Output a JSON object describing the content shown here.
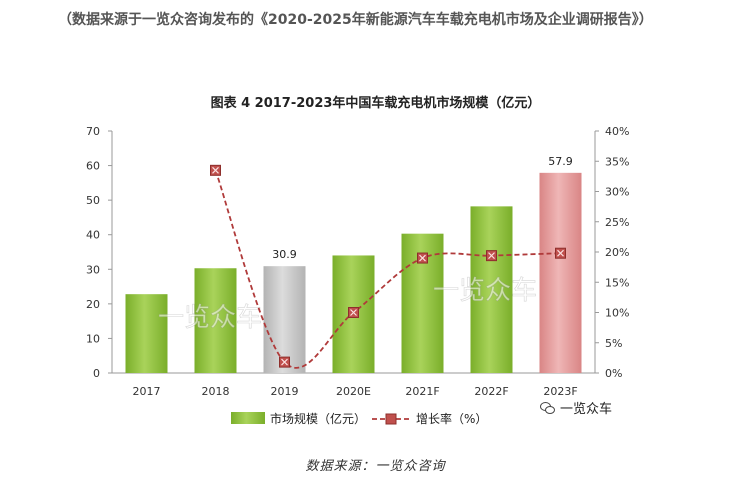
{
  "intro": "（数据来源于一览众咨询发布的《2020-2025年新能源汽车车载充电机市场及企业调研报告》）",
  "source": "数据来源：一览众咨询",
  "wechat_label": "一览众车",
  "watermark": "一览众车",
  "colors": {
    "bar_green": "#7aae2a",
    "bar_green_light": "#a9d35a",
    "bar_gray": "#c8c8c8",
    "bar_pink": "#e59c9c",
    "line_red": "#b03a3a"
  },
  "chart_data": {
    "type": "bar",
    "title": "图表 4  2017-2023年中国车载充电机市场规模（亿元）",
    "categories": [
      "2017",
      "2018",
      "2019",
      "2020E",
      "2021F",
      "2022F",
      "2023F"
    ],
    "series": [
      {
        "name": "市场规模（亿元）",
        "type": "bar",
        "axis": "left",
        "values": [
          22.8,
          30.3,
          30.9,
          34.0,
          40.3,
          48.2,
          57.9
        ],
        "bar_styles": [
          "green",
          "green",
          "gray",
          "green",
          "green",
          "green",
          "pink"
        ]
      },
      {
        "name": "增长率（%）",
        "type": "line",
        "axis": "right",
        "style": "dashed",
        "values": [
          null,
          33.5,
          1.8,
          10.0,
          19.0,
          19.4,
          19.8
        ]
      }
    ],
    "data_labels": [
      {
        "index": 2,
        "text": "30.9"
      },
      {
        "index": 6,
        "text": "57.9"
      }
    ],
    "y_left": {
      "min": 0,
      "max": 70,
      "ticks": [
        "0",
        "10",
        "20",
        "30",
        "40",
        "50",
        "60",
        "70"
      ]
    },
    "y_right": {
      "min": 0,
      "max": 40,
      "ticks": [
        "0%",
        "5%",
        "10%",
        "15%",
        "20%",
        "25%",
        "30%",
        "35%",
        "40%"
      ]
    },
    "legend_position": "bottom",
    "grid": false
  }
}
